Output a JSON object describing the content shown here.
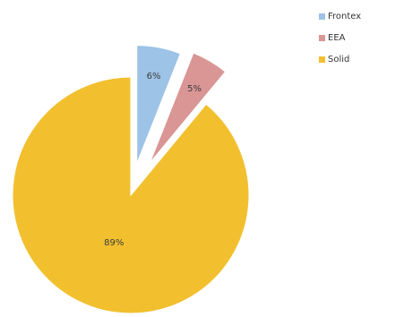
{
  "chart_data": {
    "type": "pie",
    "style": "exploded",
    "title": "",
    "slices": [
      {
        "label": "Frontex",
        "value": 6,
        "display": "6%",
        "color": "#9DC3E6"
      },
      {
        "label": "EEA",
        "value": 5,
        "display": "5%",
        "color": "#D99694"
      },
      {
        "label": "Solid",
        "value": 89,
        "display": "89%",
        "color": "#F2C02F"
      }
    ],
    "legend_position": "top-right"
  }
}
